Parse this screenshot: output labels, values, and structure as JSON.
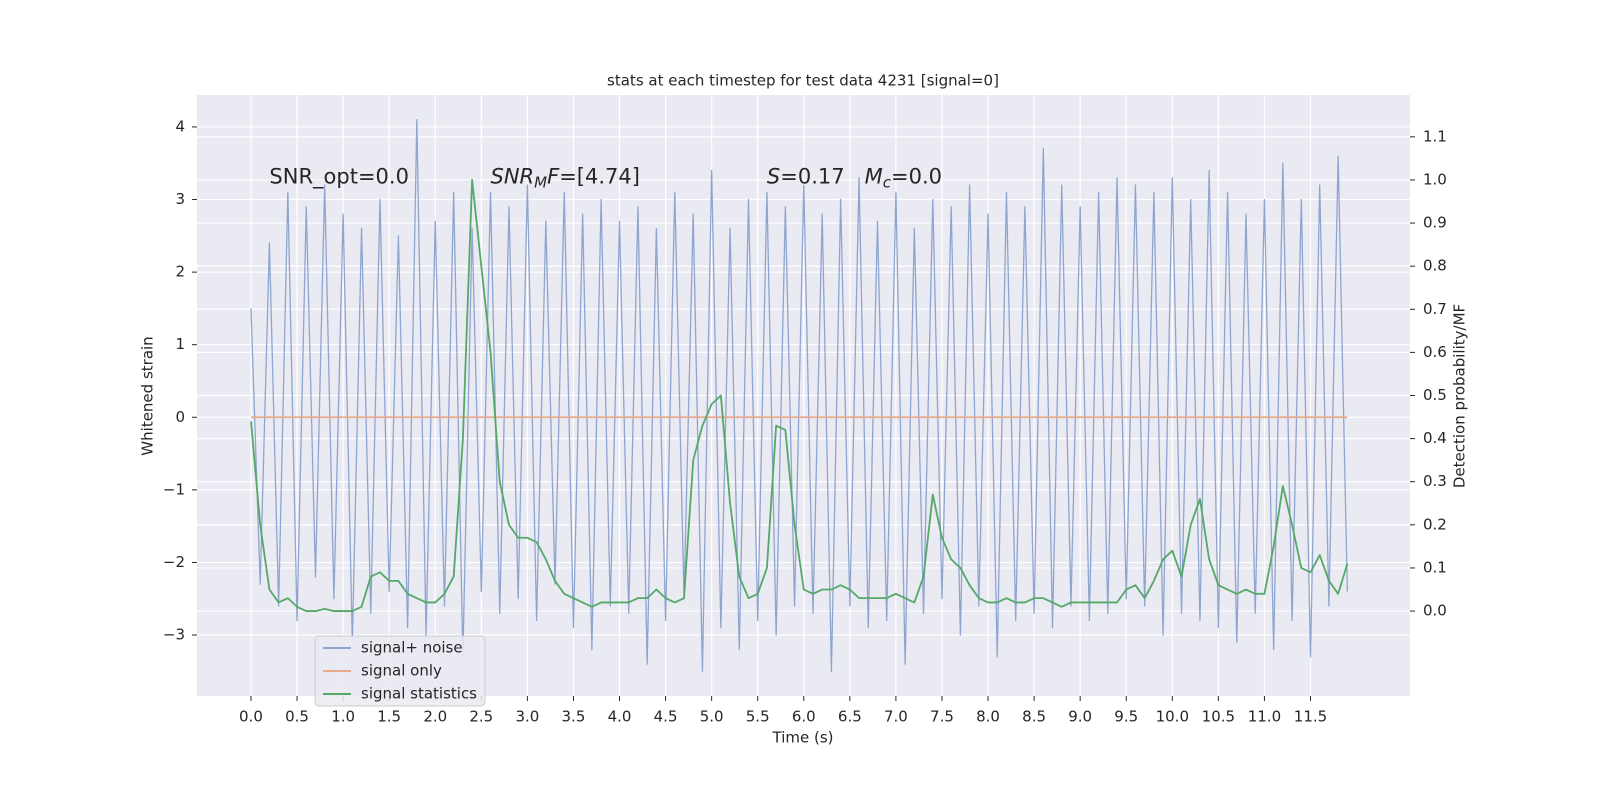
{
  "chart_data": {
    "type": "line",
    "title": "stats at each timestep for test data 4231 [signal=0]",
    "xlabel": "Time (s)",
    "ylabel": "Whitened strain",
    "y2label": "Detection probability/MF",
    "annotations": [
      {
        "x": 0.2,
        "y": 3.3,
        "parts": [
          {
            "text": "SNR_opt=0.0"
          }
        ]
      },
      {
        "x": 2.6,
        "y": 3.3,
        "parts": [
          {
            "text": "SNR",
            "style": "italic"
          },
          {
            "text": "M",
            "style": "italic-sub"
          },
          {
            "text": "F",
            "style": "italic"
          },
          {
            "text": "=[4.74]"
          }
        ]
      },
      {
        "x": 5.6,
        "y": 3.3,
        "parts": [
          {
            "text": "S",
            "style": "italic"
          },
          {
            "text": "=0.17   "
          },
          {
            "text": "M",
            "style": "italic"
          },
          {
            "text": "c",
            "style": "italic-sub"
          },
          {
            "text": "=0.0"
          }
        ]
      }
    ],
    "xlim": [
      -0.586,
      12.58
    ],
    "ylim": [
      -3.84,
      4.44
    ],
    "y2lim": [
      -0.197,
      1.197
    ],
    "xticks": [
      {
        "value": 0,
        "label": "0.0"
      },
      0.5,
      {
        "value": 1,
        "label": "1.0"
      },
      1.5,
      {
        "value": 2,
        "label": "2.0"
      },
      2.5,
      {
        "value": 3,
        "label": "3.0"
      },
      3.5,
      {
        "value": 4,
        "label": "4.0"
      },
      4.5,
      {
        "value": 5,
        "label": "5.0"
      },
      5.5,
      {
        "value": 6,
        "label": "6.0"
      },
      6.5,
      {
        "value": 7,
        "label": "7.0"
      },
      7.5,
      {
        "value": 8,
        "label": "8.0"
      },
      8.5,
      {
        "value": 9,
        "label": "9.0"
      },
      9.5,
      {
        "value": 10,
        "label": "10.0"
      },
      10.5,
      {
        "value": 11,
        "label": "11.0"
      },
      11.5
    ],
    "yticks": [
      -3,
      -2,
      -1,
      0,
      1,
      2,
      3,
      4
    ],
    "y2ticks": [
      {
        "value": 0,
        "label": "0.0"
      },
      0.1,
      0.2,
      0.3,
      0.4,
      0.5,
      0.6,
      0.7,
      0.8,
      0.9,
      {
        "value": 1,
        "label": "1.0"
      },
      1.1
    ],
    "grid": true,
    "legend": "lower left",
    "x": [
      0,
      0.1,
      0.2,
      0.3,
      0.4,
      0.5,
      0.6,
      0.7,
      0.8,
      0.9,
      1,
      1.1,
      1.2,
      1.3,
      1.4,
      1.5,
      1.6,
      1.7,
      1.8,
      1.9,
      2,
      2.1,
      2.2,
      2.3,
      2.4,
      2.5,
      2.6,
      2.7,
      2.8,
      2.9,
      3,
      3.1,
      3.2,
      3.3,
      3.4,
      3.5,
      3.6,
      3.7,
      3.8,
      3.9,
      4,
      4.1,
      4.2,
      4.3,
      4.4,
      4.5,
      4.6,
      4.7,
      4.8,
      4.9,
      5,
      5.1,
      5.2,
      5.3,
      5.4,
      5.5,
      5.6,
      5.7,
      5.8,
      5.9,
      6,
      6.1,
      6.2,
      6.3,
      6.4,
      6.5,
      6.6,
      6.7,
      6.8,
      6.9,
      7,
      7.1,
      7.2,
      7.3,
      7.4,
      7.5,
      7.6,
      7.7,
      7.8,
      7.9,
      8,
      8.1,
      8.2,
      8.3,
      8.4,
      8.5,
      8.6,
      8.7,
      8.8,
      8.9,
      9,
      9.1,
      9.2,
      9.3,
      9.4,
      9.5,
      9.6,
      9.7,
      9.8,
      9.9,
      10,
      10.1,
      10.2,
      10.3,
      10.4,
      10.5,
      10.6,
      10.7,
      10.8,
      10.9,
      11,
      11.1,
      11.2,
      11.3,
      11.4,
      11.5,
      11.6,
      11.7,
      11.8,
      11.9
    ],
    "series": [
      {
        "name": "signal+ noise",
        "color": "#8fa5d0",
        "axis": "y",
        "values": [
          1.5,
          -2.3,
          2.4,
          -2.6,
          3.1,
          -2.8,
          2.9,
          -2.2,
          3.2,
          -2.5,
          2.8,
          -3.1,
          2.6,
          -2.7,
          3.0,
          -2.4,
          2.5,
          -2.9,
          4.1,
          -3.0,
          2.7,
          -2.6,
          3.1,
          -3.3,
          2.6,
          -2.4,
          3.1,
          -2.7,
          2.9,
          -2.5,
          3.2,
          -2.8,
          2.7,
          -2.3,
          3.1,
          -2.9,
          2.8,
          -3.2,
          3.0,
          -2.6,
          2.7,
          -2.7,
          2.9,
          -3.4,
          2.6,
          -2.8,
          3.1,
          -2.5,
          2.8,
          -3.5,
          3.4,
          -2.9,
          2.6,
          -3.2,
          3.0,
          -2.8,
          3.1,
          -3.0,
          2.9,
          -2.6,
          3.2,
          -2.7,
          2.8,
          -3.5,
          3.0,
          -2.6,
          3.3,
          -2.9,
          2.7,
          -2.8,
          3.1,
          -3.4,
          2.6,
          -2.7,
          3.0,
          -2.5,
          2.9,
          -3.0,
          3.2,
          -2.6,
          2.8,
          -3.3,
          3.1,
          -2.8,
          2.9,
          -2.7,
          3.7,
          -2.9,
          3.2,
          -2.6,
          2.9,
          -2.8,
          3.1,
          -2.7,
          3.3,
          -2.5,
          3.2,
          -2.6,
          3.1,
          -3.0,
          3.3,
          -2.7,
          3.0,
          -2.8,
          3.4,
          -2.9,
          3.1,
          -3.1,
          2.8,
          -2.7,
          3.0,
          -3.2,
          3.5,
          -2.8,
          3.0,
          -3.3,
          3.2,
          -2.6,
          3.6,
          -2.4
        ]
      },
      {
        "name": "signal only",
        "color": "#e8a98c",
        "axis": "y",
        "values": [
          0,
          0,
          0,
          0,
          0,
          0,
          0,
          0,
          0,
          0,
          0,
          0,
          0,
          0,
          0,
          0,
          0,
          0,
          0,
          0,
          0,
          0,
          0,
          0,
          0,
          0,
          0,
          0,
          0,
          0,
          0,
          0,
          0,
          0,
          0,
          0,
          0,
          0,
          0,
          0,
          0,
          0,
          0,
          0,
          0,
          0,
          0,
          0,
          0,
          0,
          0,
          0,
          0,
          0,
          0,
          0,
          0,
          0,
          0,
          0,
          0,
          0,
          0,
          0,
          0,
          0,
          0,
          0,
          0,
          0,
          0,
          0,
          0,
          0,
          0,
          0,
          0,
          0,
          0,
          0,
          0,
          0,
          0,
          0,
          0,
          0,
          0,
          0,
          0,
          0,
          0,
          0,
          0,
          0,
          0,
          0,
          0,
          0,
          0,
          0,
          0,
          0,
          0,
          0,
          0,
          0,
          0,
          0,
          0,
          0,
          0,
          0,
          0,
          0,
          0,
          0,
          0,
          0,
          0,
          0
        ]
      },
      {
        "name": "signal statistics",
        "color": "#55a868",
        "axis": "y2",
        "values": [
          0.44,
          0.2,
          0.05,
          0.02,
          0.03,
          0.01,
          0.0,
          0.0,
          0.005,
          0.0,
          0.0,
          0.0,
          0.01,
          0.08,
          0.09,
          0.07,
          0.07,
          0.04,
          0.03,
          0.02,
          0.02,
          0.04,
          0.08,
          0.4,
          1.0,
          0.8,
          0.6,
          0.3,
          0.2,
          0.17,
          0.17,
          0.16,
          0.12,
          0.07,
          0.04,
          0.03,
          0.02,
          0.01,
          0.02,
          0.02,
          0.02,
          0.02,
          0.03,
          0.03,
          0.05,
          0.03,
          0.02,
          0.03,
          0.35,
          0.43,
          0.48,
          0.5,
          0.25,
          0.08,
          0.03,
          0.04,
          0.1,
          0.43,
          0.42,
          0.2,
          0.05,
          0.04,
          0.05,
          0.05,
          0.06,
          0.05,
          0.03,
          0.03,
          0.03,
          0.03,
          0.04,
          0.03,
          0.02,
          0.08,
          0.27,
          0.17,
          0.12,
          0.1,
          0.06,
          0.03,
          0.02,
          0.02,
          0.03,
          0.02,
          0.02,
          0.03,
          0.03,
          0.02,
          0.01,
          0.02,
          0.02,
          0.02,
          0.02,
          0.02,
          0.02,
          0.05,
          0.06,
          0.03,
          0.07,
          0.12,
          0.14,
          0.08,
          0.2,
          0.26,
          0.12,
          0.06,
          0.05,
          0.04,
          0.05,
          0.04,
          0.04,
          0.15,
          0.29,
          0.2,
          0.1,
          0.09,
          0.13,
          0.07,
          0.04,
          0.11
        ]
      }
    ]
  }
}
